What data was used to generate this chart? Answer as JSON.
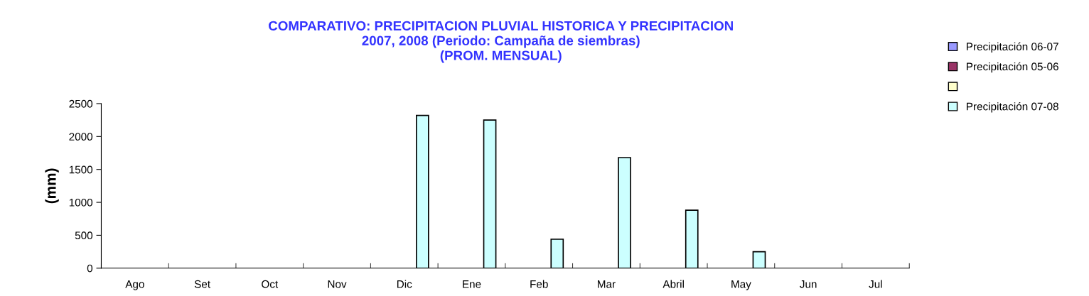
{
  "chart_data": {
    "type": "bar",
    "title": "COMPARATIVO: PRECIPITACION PLUVIAL HISTORICA Y PRECIPITACION\n2007, 2008 (Periodo: Campaña de siembras)\n(PROM. MENSUAL)",
    "ylabel": "(mm)",
    "categories": [
      "Ago",
      "Set",
      "Oct",
      "Nov",
      "Dic",
      "Ene",
      "Feb",
      "Mar",
      "Abril",
      "May",
      "Jun",
      "Jul"
    ],
    "series": [
      {
        "name": "Precipitación 06-07",
        "color": "#9999ff",
        "values": [
          null,
          null,
          null,
          null,
          null,
          null,
          null,
          null,
          null,
          null,
          null,
          null
        ]
      },
      {
        "name": "Precipitación 05-06",
        "color": "#993366",
        "values": [
          null,
          null,
          null,
          null,
          null,
          null,
          null,
          null,
          null,
          null,
          null,
          null
        ]
      },
      {
        "color": "#ffffcc",
        "values": [
          null,
          null,
          null,
          null,
          null,
          null,
          null,
          null,
          null,
          null,
          null,
          null
        ]
      },
      {
        "name": "Precipitación 07-08",
        "color": "#ccffff",
        "values": [
          null,
          null,
          null,
          null,
          2320,
          2250,
          440,
          1680,
          880,
          250,
          null,
          null
        ]
      }
    ],
    "ylim": [
      0,
      2500
    ],
    "yticks": [
      0,
      500,
      1000,
      1500,
      2000,
      2500
    ],
    "grid": false,
    "legend": "right"
  }
}
